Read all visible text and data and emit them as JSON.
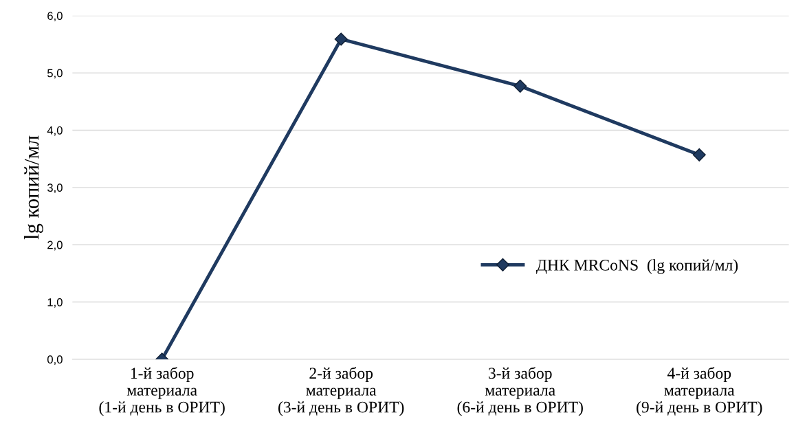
{
  "chart_data": {
    "type": "line",
    "ylabel": "lg копий/мл",
    "categories": [
      "1-й забор\nматериала\n(1-й день в ОРИТ)",
      "2-й забор\nматериала\n(3-й день в ОРИТ)",
      "3-й забор\nматериала\n(6-й день в ОРИТ)",
      "4-й забор\nматериала\n(9-й день в ОРИТ)"
    ],
    "series": [
      {
        "name": "ДНК MRCoNS  (lg копий/мл)",
        "color": "#1f3a60",
        "values": [
          0.0,
          5.59,
          4.77,
          3.57
        ]
      }
    ],
    "ylim": [
      0,
      6
    ],
    "yticks": [
      {
        "value": 0,
        "label": "0,0"
      },
      {
        "value": 1,
        "label": "1,0"
      },
      {
        "value": 2,
        "label": "2,0"
      },
      {
        "value": 3,
        "label": "3,0"
      },
      {
        "value": 4,
        "label": "4,0"
      },
      {
        "value": 5,
        "label": "5,0"
      },
      {
        "value": 6,
        "label": "6,0"
      }
    ],
    "grid": "y",
    "legend": "center right",
    "marker": "diamond",
    "line_style": "solid"
  }
}
